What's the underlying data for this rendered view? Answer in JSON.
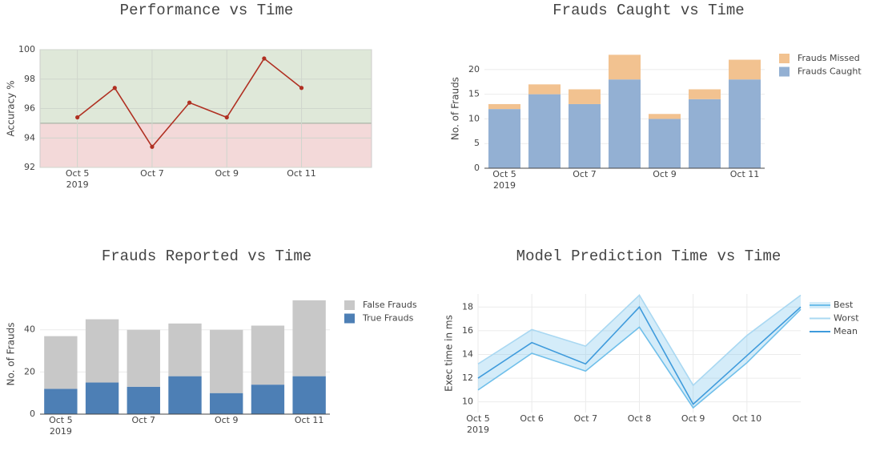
{
  "chart_data": [
    {
      "type": "line",
      "title": "Performance vs Time",
      "y_label": "Accuracy %",
      "x": [
        "2019-10-05",
        "2019-10-06",
        "2019-10-07",
        "2019-10-08",
        "2019-10-09",
        "2019-10-10",
        "2019-10-11"
      ],
      "series": [
        {
          "color": "#b03022",
          "values": [
            95.4,
            97.4,
            93.4,
            96.4,
            95.4,
            99.4,
            97.4
          ]
        }
      ],
      "threshold": 95,
      "above_color": "#dfe8d9",
      "below_color": "#f3d9d9",
      "xlim": [
        "2019-10-04",
        "2019-10-12T21:00"
      ],
      "xticks": [
        {
          "value": "2019-10-05",
          "label": "Oct 5"
        },
        {
          "value": "2019-10-07",
          "label": "Oct 7"
        },
        {
          "value": "2019-10-09",
          "label": "Oct 9"
        },
        {
          "value": "2019-10-11",
          "label": "Oct 11"
        }
      ],
      "x_year_label": "2019",
      "ylim": [
        92,
        100
      ],
      "yticks": [
        92,
        94,
        96,
        98,
        100
      ],
      "grid": "both"
    },
    {
      "type": "bar",
      "title": "Frauds Caught vs Time",
      "y_label": "No. of Frauds",
      "x": [
        "2019-10-05",
        "2019-10-06",
        "2019-10-07",
        "2019-10-08",
        "2019-10-09",
        "2019-10-10",
        "2019-10-11"
      ],
      "series": [
        {
          "name": "Frauds Caught",
          "color": "#93b0d3",
          "values": [
            12,
            15,
            13,
            18,
            10,
            14,
            18
          ]
        },
        {
          "name": "Frauds Missed",
          "color": "#f2c290",
          "values": [
            1,
            2,
            3,
            5,
            1,
            2,
            4
          ]
        }
      ],
      "xlim": [
        "2019-10-04T12:00",
        "2019-10-11T12:00"
      ],
      "xticks": [
        {
          "value": "2019-10-05",
          "label": "Oct 5"
        },
        {
          "value": "2019-10-07",
          "label": "Oct 7"
        },
        {
          "value": "2019-10-09",
          "label": "Oct 9"
        },
        {
          "value": "2019-10-11",
          "label": "Oct 11"
        }
      ],
      "x_year_label": "2019",
      "ylim": [
        0,
        24.2
      ],
      "yticks": [
        0,
        5,
        10,
        15,
        20
      ],
      "grid": "y"
    },
    {
      "type": "bar",
      "title": "Frauds Reported vs Time",
      "y_label": "No. of Frauds",
      "x": [
        "2019-10-05",
        "2019-10-06",
        "2019-10-07",
        "2019-10-08",
        "2019-10-09",
        "2019-10-10",
        "2019-10-11"
      ],
      "series": [
        {
          "name": "True Frauds",
          "color": "#4d7fb5",
          "values": [
            12,
            15,
            13,
            18,
            10,
            14,
            18
          ]
        },
        {
          "name": "False Frauds",
          "color": "#c8c8c8",
          "values": [
            25,
            30,
            27,
            25,
            30,
            28,
            36
          ]
        }
      ],
      "xlim": [
        "2019-10-04T12:00",
        "2019-10-11T12:00"
      ],
      "xticks": [
        {
          "value": "2019-10-05",
          "label": "Oct 5"
        },
        {
          "value": "2019-10-07",
          "label": "Oct 7"
        },
        {
          "value": "2019-10-09",
          "label": "Oct 9"
        },
        {
          "value": "2019-10-11",
          "label": "Oct 11"
        }
      ],
      "x_year_label": "2019",
      "ylim": [
        0,
        57
      ],
      "yticks": [
        0,
        20,
        40
      ],
      "grid": "y"
    },
    {
      "type": "line",
      "title": "Model Prediction Time vs Time",
      "y_label": "Exec time in ms",
      "x": [
        "2019-10-05",
        "2019-10-06",
        "2019-10-07",
        "2019-10-08",
        "2019-10-09",
        "2019-10-10",
        "2019-10-11"
      ],
      "series": [
        {
          "name": "Best",
          "color": "#6fbfea",
          "fill": "tonext",
          "values": [
            11,
            14.1,
            12.6,
            16.3,
            9.5,
            13.3,
            17.8
          ]
        },
        {
          "name": "Worst",
          "color": "#a9d8f2",
          "values": [
            13.2,
            16.1,
            14.7,
            19,
            11.4,
            15.6,
            19
          ]
        },
        {
          "name": "Mean",
          "color": "#3f9bdc",
          "values": [
            12,
            15,
            13.2,
            18,
            9.8,
            13.9,
            18
          ]
        }
      ],
      "xlim": [
        "2019-10-05",
        "2019-10-11"
      ],
      "xticks": [
        {
          "value": "2019-10-05",
          "label": "Oct 5"
        },
        {
          "value": "2019-10-06",
          "label": "Oct 6"
        },
        {
          "value": "2019-10-07",
          "label": "Oct 7"
        },
        {
          "value": "2019-10-08",
          "label": "Oct 8"
        },
        {
          "value": "2019-10-09",
          "label": "Oct 9"
        },
        {
          "value": "2019-10-10",
          "label": "Oct 10"
        }
      ],
      "x_year_label": "2019",
      "ylim": [
        9.1,
        19.1
      ],
      "yticks": [
        10,
        12,
        14,
        16,
        18
      ],
      "grid": "both"
    }
  ]
}
